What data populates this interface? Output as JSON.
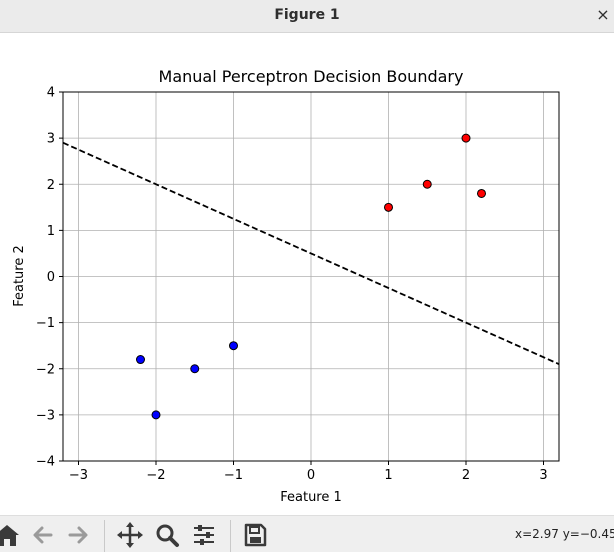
{
  "window": {
    "title": "Figure 1",
    "close_glyph": "×"
  },
  "chart_data": {
    "type": "scatter",
    "title": "Manual Perceptron Decision Boundary",
    "xlabel": "Feature 1",
    "ylabel": "Feature 2",
    "xlim": [
      -3.2,
      3.2
    ],
    "ylim": [
      -4,
      4
    ],
    "xticks": [
      -3,
      -2,
      -1,
      0,
      1,
      2,
      3
    ],
    "yticks": [
      -4,
      -3,
      -2,
      -1,
      0,
      1,
      2,
      3,
      4
    ],
    "xtick_labels": [
      "−3",
      "−2",
      "−1",
      "0",
      "1",
      "2",
      "3"
    ],
    "ytick_labels": [
      "−4",
      "−3",
      "−2",
      "−1",
      "0",
      "1",
      "2",
      "3",
      "4"
    ],
    "grid": true,
    "series": [
      {
        "color": "#0000ff",
        "points": [
          [
            -2.2,
            -1.8
          ],
          [
            -2.0,
            -3.0
          ],
          [
            -1.5,
            -2.0
          ],
          [
            -1.0,
            -1.5
          ]
        ]
      },
      {
        "color": "#ff0000",
        "points": [
          [
            1.0,
            1.5
          ],
          [
            1.5,
            2.0
          ],
          [
            2.0,
            3.0
          ],
          [
            2.2,
            1.8
          ]
        ]
      }
    ],
    "decision_boundary": {
      "style": "dashed",
      "color": "#000000",
      "points": [
        [
          -3.2,
          2.9
        ],
        [
          3.2,
          -1.9
        ]
      ]
    }
  },
  "toolbar": {
    "icons": [
      "home-icon",
      "back-icon",
      "forward-icon",
      "pan-icon",
      "zoom-icon",
      "configure-subplots-icon",
      "save-icon"
    ],
    "coordinates": "x=2.97 y=−0.45"
  }
}
